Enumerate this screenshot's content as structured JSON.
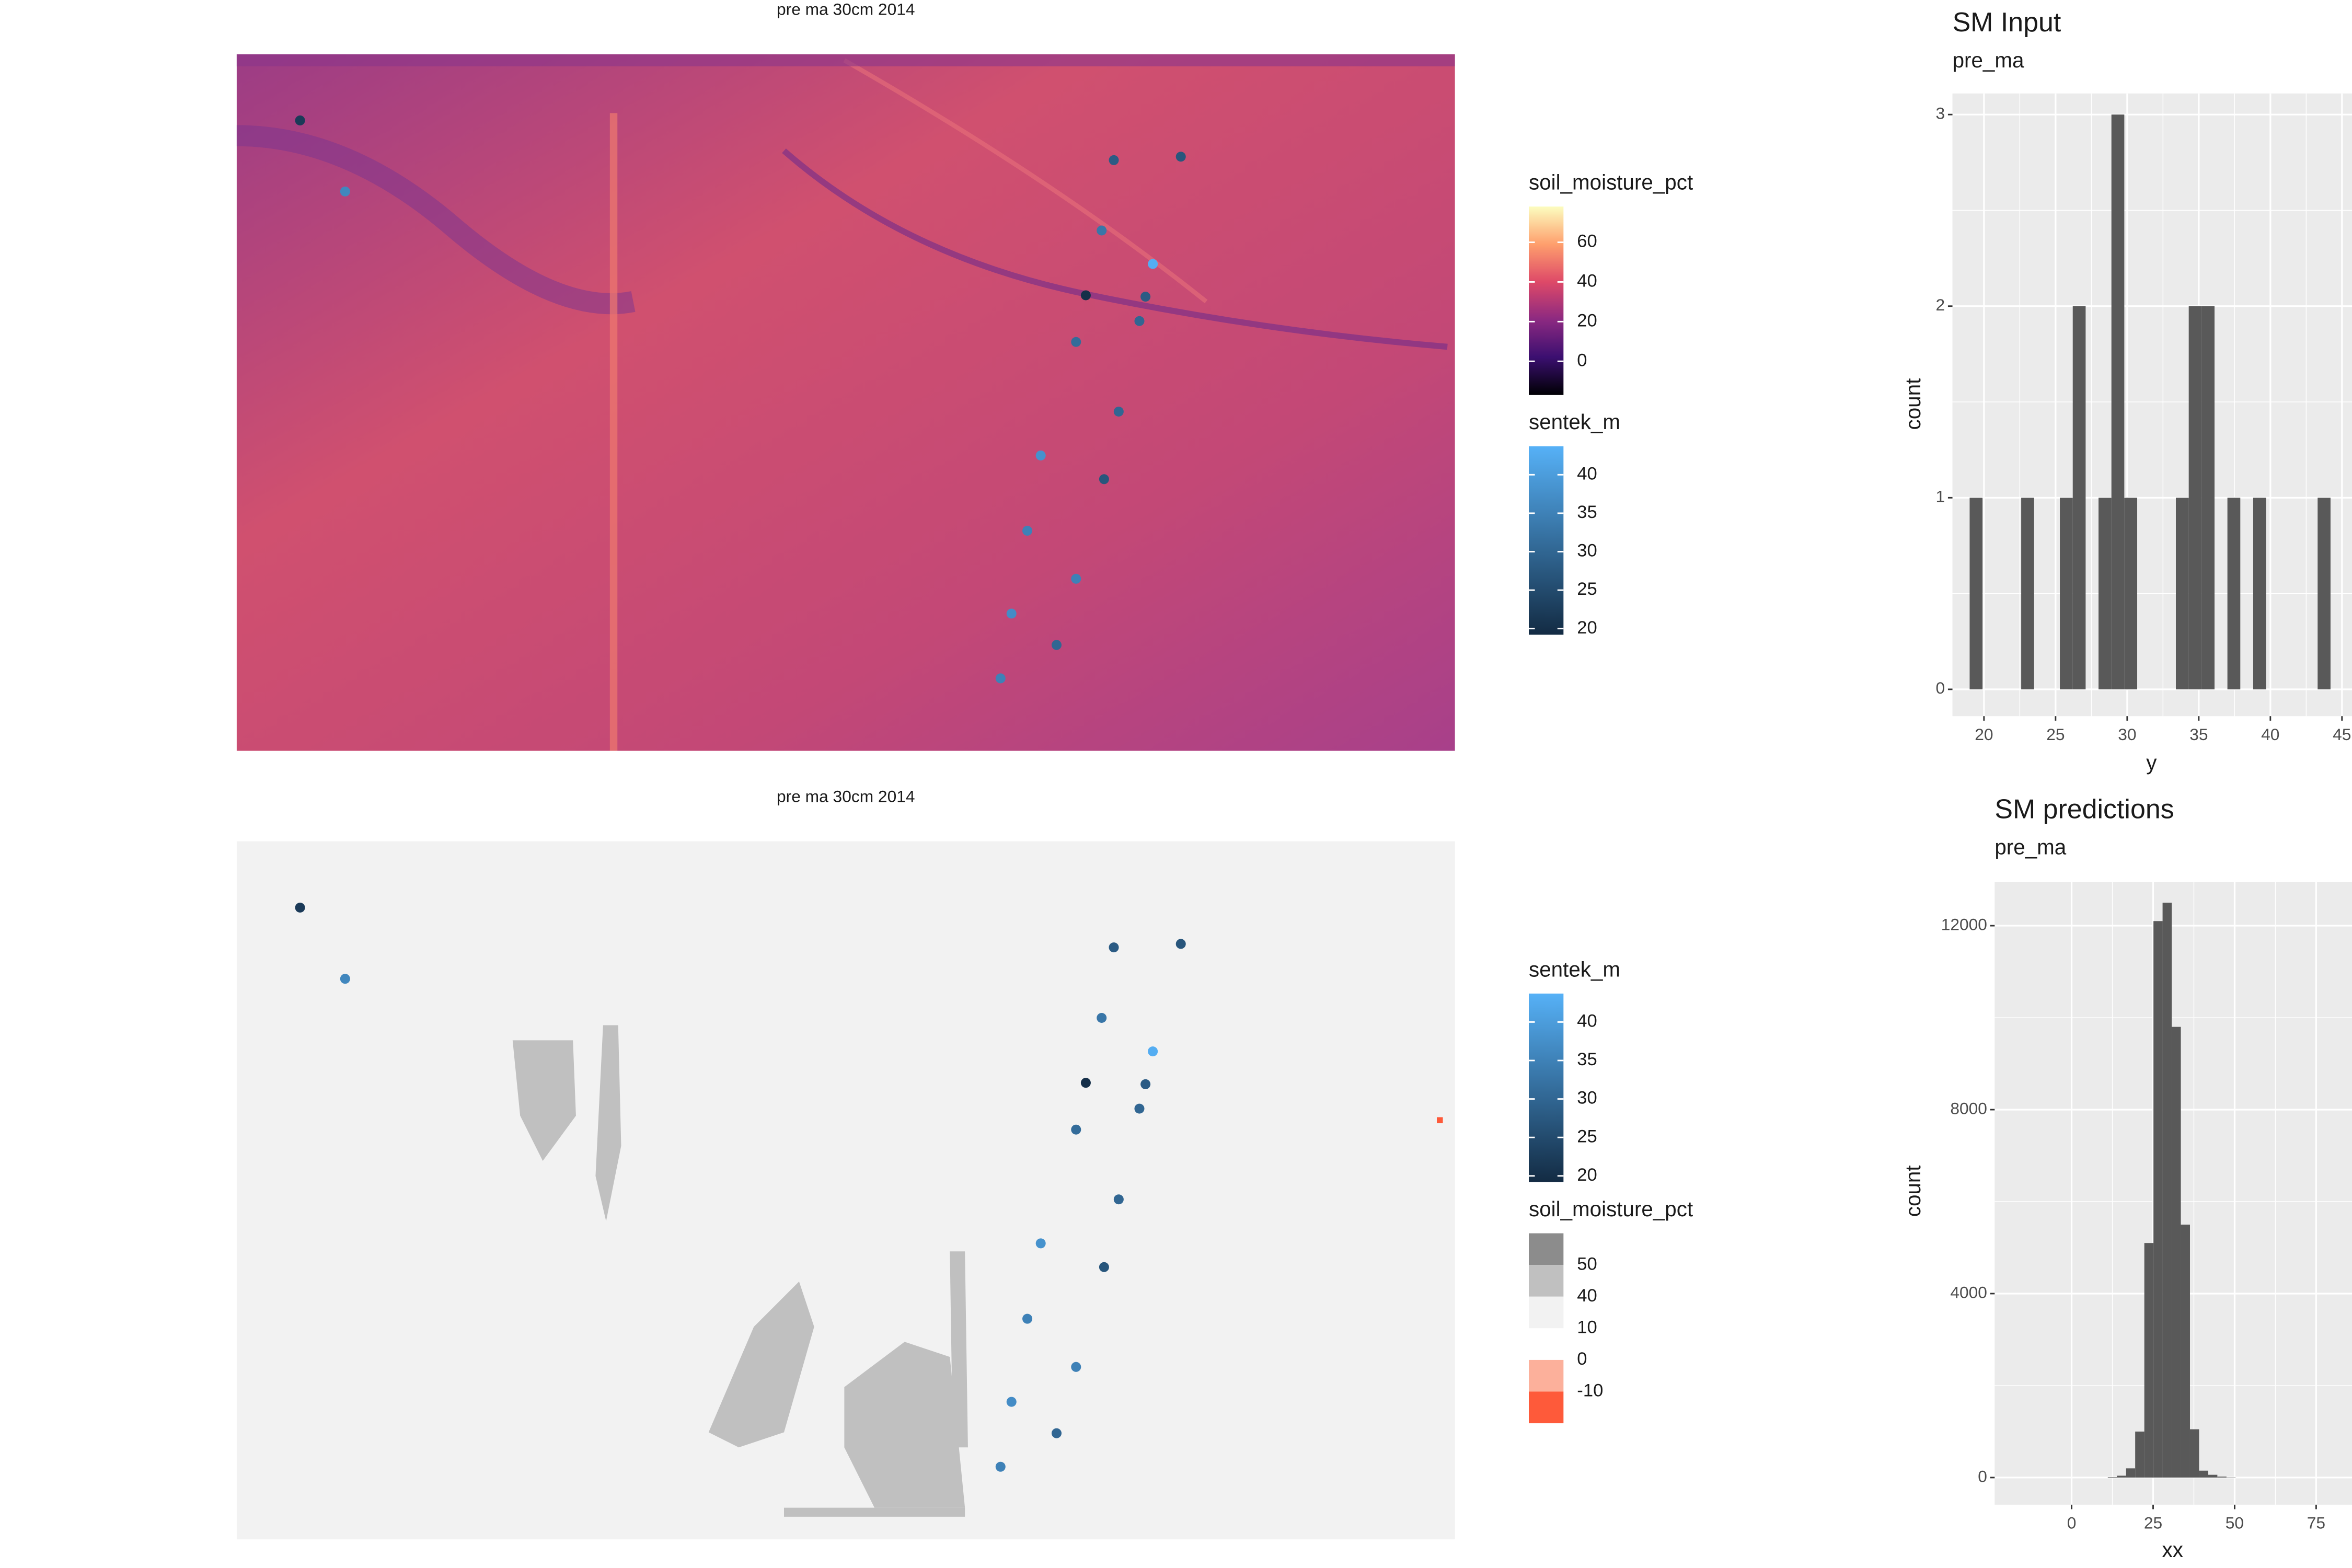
{
  "chart_data": [
    {
      "type": "raster-map",
      "title": "pre ma 30cm 2014",
      "xlim": [
        0,
        100
      ],
      "ylim": [
        0,
        100
      ],
      "points": {
        "name": "sentek_m",
        "x": [
          5.2,
          8.9,
          72.0,
          77.5,
          71.0,
          75.2,
          69.7,
          74.6,
          74.1,
          68.9,
          72.4,
          66.0,
          71.2,
          64.9,
          68.9,
          63.6,
          67.3,
          62.7
        ],
        "y": [
          90.5,
          80.3,
          84.8,
          85.3,
          74.7,
          69.9,
          65.4,
          65.2,
          61.7,
          58.7,
          48.7,
          42.4,
          39.0,
          31.6,
          24.7,
          19.7,
          15.2,
          10.4
        ],
        "values": [
          22,
          36,
          28,
          27,
          33,
          43,
          20,
          28,
          30,
          31,
          30,
          38,
          27,
          35,
          35,
          37,
          30,
          35
        ]
      },
      "legends": [
        {
          "kind": "gradient",
          "title": "soil_moisture_pct",
          "lim": [
            -17,
            78
          ],
          "ticks": [
            0,
            20,
            40,
            60
          ],
          "colors": [
            "#000004",
            "#3b0f70",
            "#8c2981",
            "#de4968",
            "#fe9f6d",
            "#fcfdbf"
          ]
        },
        {
          "kind": "gradient",
          "title": "sentek_m",
          "lim": [
            19.2,
            43.7
          ],
          "ticks": [
            20,
            25,
            30,
            35,
            40
          ],
          "colors": [
            "#132b43",
            "#56b1f7"
          ]
        }
      ]
    },
    {
      "type": "raster-map",
      "title": "pre ma 30cm 2014",
      "xlim": [
        0,
        100
      ],
      "ylim": [
        0,
        100
      ],
      "points": {
        "name": "sentek_m",
        "x": [
          5.2,
          8.9,
          72.0,
          77.5,
          71.0,
          75.2,
          69.7,
          74.6,
          74.1,
          68.9,
          72.4,
          66.0,
          71.2,
          64.9,
          68.9,
          63.6,
          67.3,
          62.7
        ],
        "y": [
          90.5,
          80.3,
          84.8,
          85.3,
          74.7,
          69.9,
          65.4,
          65.2,
          61.7,
          58.7,
          48.7,
          42.4,
          39.0,
          31.6,
          24.7,
          19.7,
          15.2,
          10.4
        ],
        "values": [
          22,
          36,
          28,
          27,
          33,
          43,
          20,
          28,
          30,
          31,
          30,
          38,
          27,
          35,
          35,
          37,
          30,
          35
        ]
      },
      "legends": [
        {
          "kind": "gradient",
          "title": "sentek_m",
          "lim": [
            19.2,
            43.7
          ],
          "ticks": [
            20,
            25,
            30,
            35,
            40
          ],
          "colors": [
            "#132b43",
            "#56b1f7"
          ]
        },
        {
          "kind": "bins",
          "title": "soil_moisture_pct",
          "labels": [
            50,
            40,
            10,
            0,
            -10
          ],
          "colors": [
            "#8c8c8c",
            "#c0c0c0",
            "#f2f2f2",
            "#ffffff",
            "#fcb09b",
            "#fe5a3a"
          ]
        }
      ]
    },
    {
      "type": "histogram",
      "title": "SM Input",
      "subtitle": "pre_ma",
      "xlabel": "y",
      "ylabel": "count",
      "color": "#595959",
      "grid": true,
      "bins": [
        19.0,
        19.9,
        20.8,
        21.7,
        22.6,
        23.5,
        24.4,
        25.3,
        26.2,
        27.1,
        28.0,
        28.9,
        29.8,
        30.7,
        31.6,
        32.5,
        33.4,
        34.3,
        35.2,
        36.1,
        37.0,
        37.9,
        38.8,
        39.7,
        40.6,
        41.5,
        42.4,
        43.3,
        44.2,
        45.1
      ],
      "values": [
        1,
        0,
        0,
        0,
        1,
        0,
        0,
        1,
        2,
        0,
        1,
        3,
        1,
        0,
        0,
        0,
        1,
        2,
        2,
        0,
        1,
        0,
        1,
        0,
        0,
        0,
        0,
        1,
        0
      ],
      "xlim": [
        17.8,
        45.7
      ],
      "ylim": [
        -0.14,
        3.11
      ],
      "xticks": [
        20,
        25,
        30,
        35,
        40,
        45
      ],
      "yticks": [
        0,
        1,
        2,
        3
      ]
    },
    {
      "type": "histogram",
      "title": "SM predictions",
      "subtitle": "pre_ma",
      "xlabel": "xx",
      "ylabel": "count",
      "color": "#595959",
      "grid": true,
      "bins": [
        11.1,
        13.9,
        16.7,
        19.5,
        22.3,
        25.1,
        27.9,
        30.7,
        33.5,
        36.3,
        39.1,
        41.9,
        44.7,
        47.5,
        50.3
      ],
      "values": [
        10,
        40,
        200,
        1000,
        5100,
        12100,
        12500,
        9800,
        5500,
        1050,
        150,
        60,
        20,
        5
      ],
      "xlim": [
        -23.6,
        86
      ],
      "ylim": [
        -590,
        12950
      ],
      "xticks": [
        0,
        25,
        50,
        75
      ],
      "yticks": [
        0,
        4000,
        8000,
        12000
      ]
    }
  ]
}
